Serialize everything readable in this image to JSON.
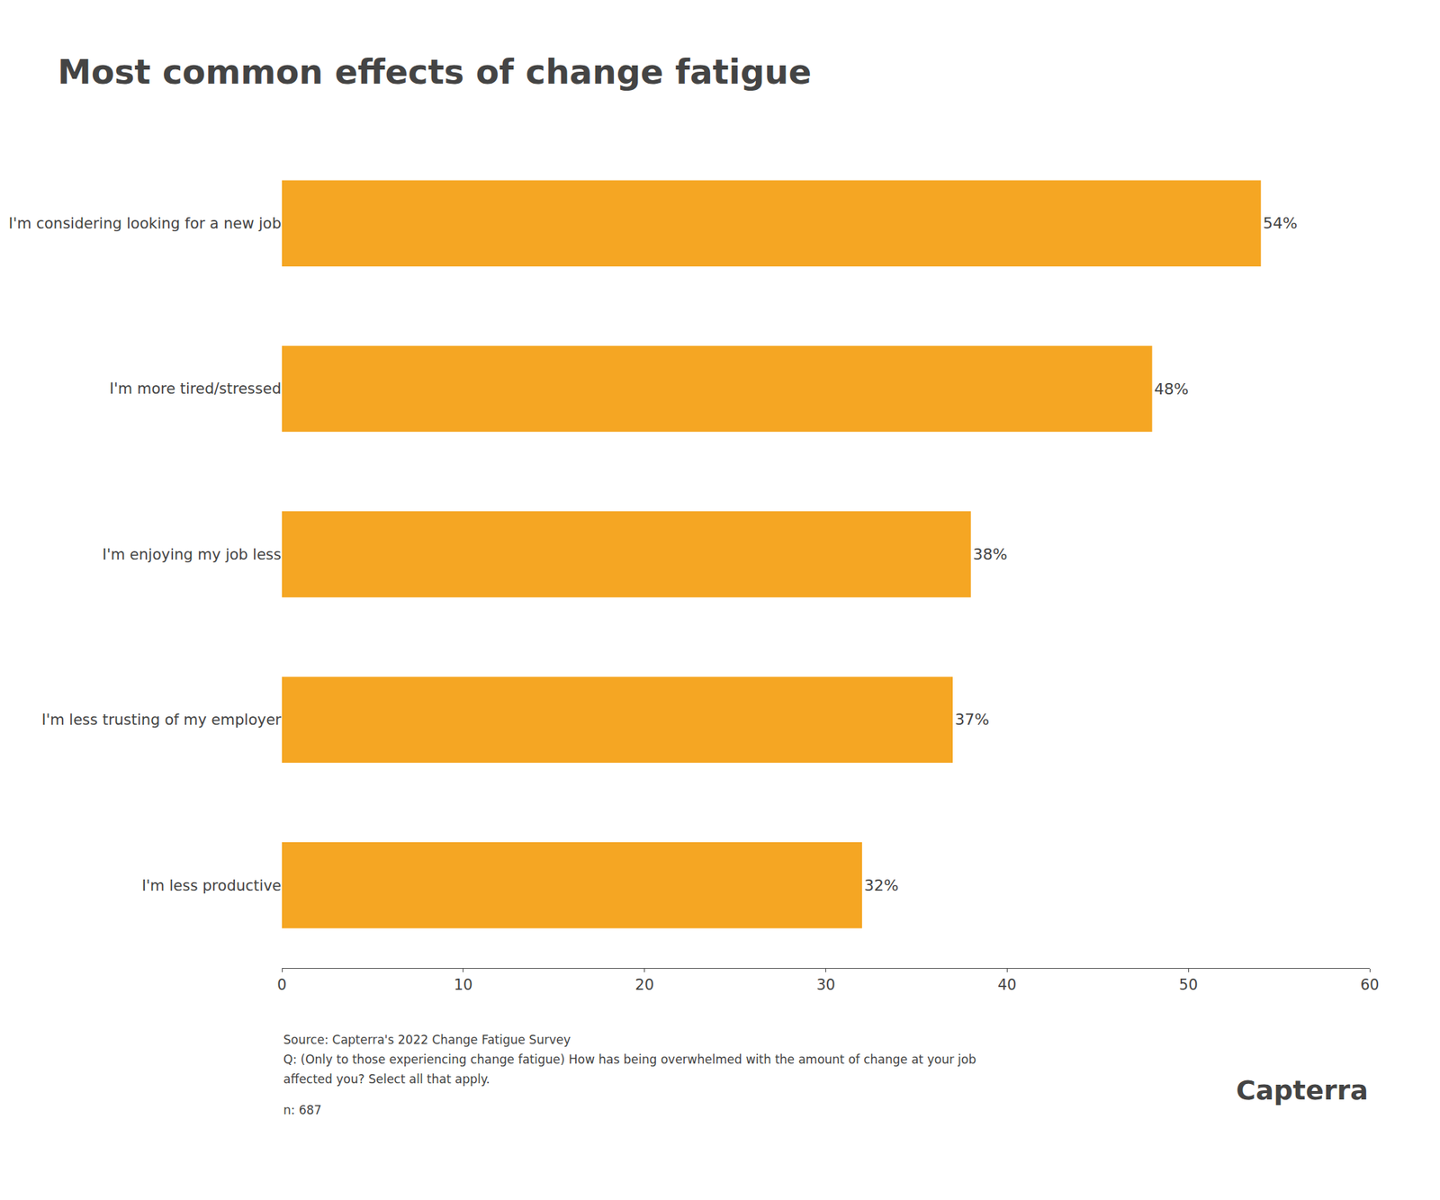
{
  "chart_data": {
    "type": "bar",
    "orientation": "horizontal",
    "title": "Most common effects of change fatigue",
    "categories": [
      "I'm less productive",
      "I'm less trusting of my employer",
      "I'm enjoying my job less",
      "I'm more tired/stressed",
      "I'm considering looking for a new job"
    ],
    "values": [
      32,
      37,
      38,
      48,
      54
    ],
    "value_labels": [
      "32%",
      "37%",
      "38%",
      "48%",
      "54%"
    ],
    "data_labels": true,
    "color": "#F5A623",
    "xlim": [
      0,
      60
    ],
    "xticks": [
      0,
      10,
      20,
      30,
      40,
      50,
      60
    ],
    "grid": false,
    "annotations": [
      "Source: Capterra's 2022 Change Fatigue Survey",
      "Q: (Only to those experiencing change fatigue) How has being overwhelmed with the amount of change at your job",
      "affected you? Select all that apply.",
      "n: 687",
      "Capterra"
    ]
  }
}
